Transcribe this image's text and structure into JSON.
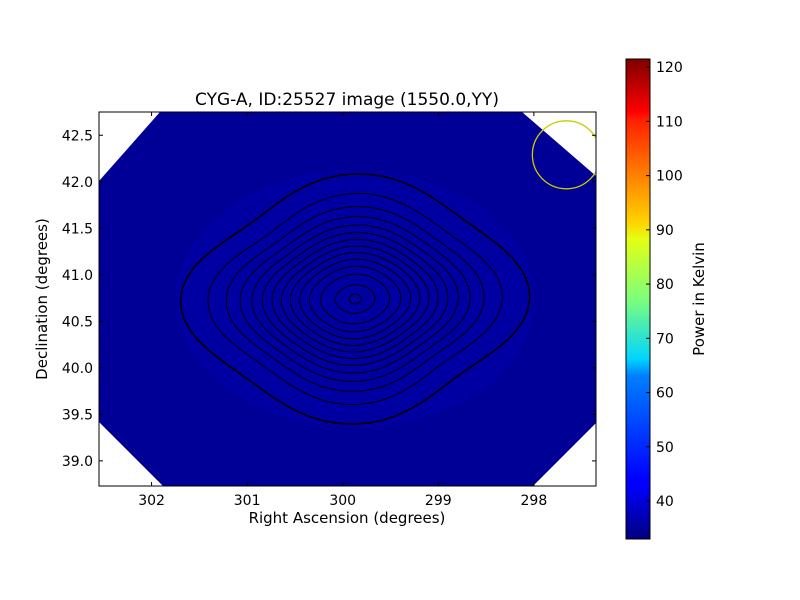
{
  "chart_data": {
    "type": "heatmap",
    "title": "CYG-A, ID:25527 image (1550.0,YY)",
    "xlabel": "Right Ascension (degrees)",
    "ylabel": "Declination (degrees)",
    "xlim": [
      302.55,
      297.35
    ],
    "ylim": [
      38.73,
      42.75
    ],
    "x_ticks": [
      302,
      301,
      300,
      299,
      298
    ],
    "y_ticks": [
      39.0,
      39.5,
      40.0,
      40.5,
      41.0,
      41.5,
      42.0,
      42.5
    ],
    "x_tick_labels": [
      "302",
      "301",
      "300",
      "299",
      "298"
    ],
    "y_tick_labels": [
      "39.0",
      "39.5",
      "40.0",
      "40.5",
      "41.0",
      "41.5",
      "42.0",
      "42.5"
    ],
    "colorbar": {
      "label": "Power in Kelvin",
      "range": [
        33,
        121.5
      ],
      "ticks": [
        40,
        50,
        60,
        70,
        80,
        90,
        100,
        110,
        120
      ],
      "tick_labels": [
        "40",
        "50",
        "60",
        "70",
        "80",
        "90",
        "100",
        "110",
        "120"
      ],
      "colormap": "jet"
    },
    "source": {
      "ra": 299.87,
      "dec": 40.74,
      "peak": 121.5,
      "background": 33,
      "sigma_ra": 0.72,
      "sigma_dec": 0.53
    },
    "contours": {
      "levels": 13,
      "color": "#000000"
    },
    "beam_circle": {
      "ra": 297.66,
      "dec": 42.29,
      "color": "#cccc00"
    },
    "grid": false
  }
}
